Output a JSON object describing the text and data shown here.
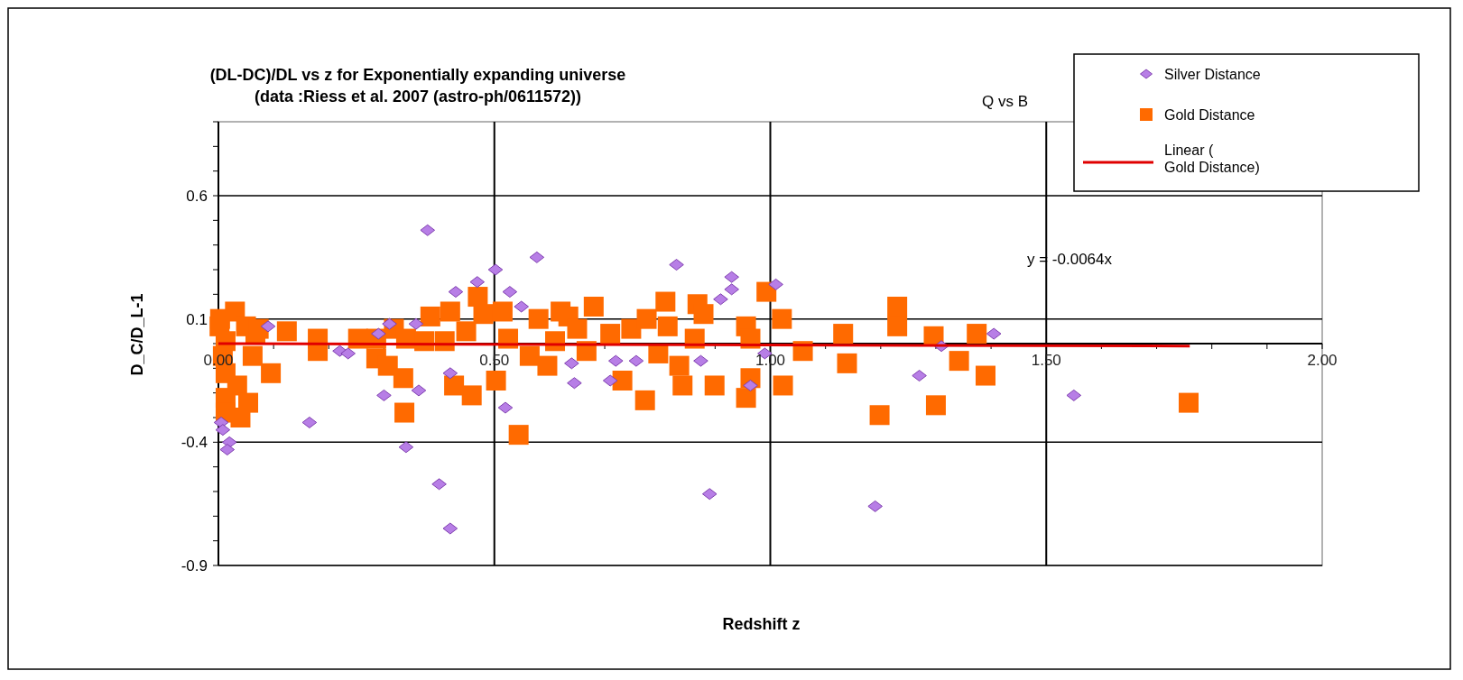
{
  "chart_data": {
    "type": "scatter",
    "title": "(DL-DC)/DL  vs z for Exponentially expanding universe\n(data :Riess et al. 2007 (astro-ph/0611572))",
    "xlabel": "Redshift z",
    "ylabel": "D_C/D_L-1",
    "annotations": [
      "Q vs B",
      "y = -0.0064x"
    ],
    "xlim": [
      0,
      2
    ],
    "ylim": [
      -0.9,
      0.9
    ],
    "xticks": [
      {
        "value": 0,
        "label": "0.00"
      },
      {
        "value": 0.1,
        "label": null
      },
      {
        "value": 0.2,
        "label": null
      },
      {
        "value": 0.3,
        "label": null
      },
      {
        "value": 0.4,
        "label": null
      },
      {
        "value": 0.5,
        "label": "0.50"
      },
      {
        "value": 0.6,
        "label": null
      },
      {
        "value": 0.7,
        "label": null
      },
      {
        "value": 0.8,
        "label": null
      },
      {
        "value": 0.9,
        "label": null
      },
      {
        "value": 1,
        "label": "1.00"
      },
      {
        "value": 1.1,
        "label": null
      },
      {
        "value": 1.2,
        "label": null
      },
      {
        "value": 1.3,
        "label": null
      },
      {
        "value": 1.4,
        "label": null
      },
      {
        "value": 1.5,
        "label": "1.50"
      },
      {
        "value": 1.6,
        "label": null
      },
      {
        "value": 1.7,
        "label": null
      },
      {
        "value": 1.8,
        "label": null
      },
      {
        "value": 1.9,
        "label": null
      },
      {
        "value": 2,
        "label": "2.00"
      }
    ],
    "yticks": [
      -0.9,
      {
        "value": -0.8,
        "label": null
      },
      {
        "value": -0.7,
        "label": null
      },
      {
        "value": -0.6,
        "label": null
      },
      {
        "value": -0.5,
        "label": null
      },
      -0.4,
      {
        "value": -0.3,
        "label": null
      },
      {
        "value": -0.2,
        "label": null
      },
      {
        "value": -0.1,
        "label": null
      },
      {
        "value": 0,
        "label": null
      },
      0.1,
      {
        "value": 0.2,
        "label": null
      },
      {
        "value": 0.3,
        "label": null
      },
      {
        "value": 0.4,
        "label": null
      },
      {
        "value": 0.5,
        "label": null
      },
      0.6,
      {
        "value": 0.7,
        "label": null
      },
      {
        "value": 0.8,
        "label": null
      },
      {
        "value": 0.9,
        "label": null
      }
    ],
    "grid": true,
    "legend": "top right",
    "series": [
      {
        "name": "Silver Distance",
        "marker": "diamond",
        "color": "#b77ee6",
        "x": [
          0.379,
          0.577,
          0.502,
          0.469,
          0.43,
          0.528,
          0.549,
          0.09,
          0.31,
          0.358,
          0.29,
          0.22,
          0.235,
          0.42,
          0.363,
          0.3,
          0.52,
          0.165,
          0.34,
          0.4,
          0.42,
          0.005,
          0.008,
          0.02,
          0.016,
          0.83,
          0.93,
          0.93,
          0.91,
          1.01,
          0.99,
          0.874,
          0.64,
          0.72,
          0.757,
          0.645,
          0.71,
          0.964,
          0.89,
          1.19,
          1.27,
          1.405,
          1.31,
          1.55
        ],
        "values": [
          0.46,
          0.35,
          0.3,
          0.25,
          0.21,
          0.21,
          0.15,
          0.07,
          0.08,
          0.08,
          0.04,
          -0.03,
          -0.04,
          -0.12,
          -0.19,
          -0.21,
          -0.26,
          -0.32,
          -0.42,
          -0.57,
          -0.75,
          -0.32,
          -0.35,
          -0.4,
          -0.43,
          0.32,
          0.27,
          0.22,
          0.18,
          0.24,
          -0.04,
          -0.07,
          -0.08,
          -0.07,
          -0.07,
          -0.16,
          -0.15,
          -0.17,
          -0.61,
          -0.66,
          -0.13,
          0.04,
          -0.01,
          -0.21
        ]
      },
      {
        "name": "Gold Distance",
        "marker": "square",
        "color": "#ff6a00",
        "x": [
          0.03,
          0.002,
          0.05,
          0.013,
          0.067,
          0.008,
          0.062,
          0.095,
          0.013,
          0.034,
          0.013,
          0.054,
          0.04,
          0.013,
          0.073,
          0.003,
          0.124,
          0.18,
          0.18,
          0.253,
          0.286,
          0.286,
          0.307,
          0.335,
          0.337,
          0.318,
          0.34,
          0.384,
          0.373,
          0.42,
          0.41,
          0.427,
          0.459,
          0.47,
          0.48,
          0.449,
          0.515,
          0.503,
          0.544,
          0.525,
          0.58,
          0.596,
          0.564,
          0.62,
          0.61,
          0.634,
          0.68,
          0.65,
          0.667,
          0.71,
          0.732,
          0.773,
          0.748,
          0.776,
          0.81,
          0.814,
          0.797,
          0.835,
          0.841,
          0.868,
          0.879,
          0.863,
          0.899,
          0.956,
          0.964,
          0.956,
          0.964,
          0.993,
          1.021,
          1.023,
          1.059,
          1.132,
          1.139,
          1.23,
          1.23,
          1.198,
          1.296,
          1.3,
          1.374,
          1.342,
          1.39,
          1.758
        ],
        "values": [
          0.13,
          0.07,
          0.07,
          0.01,
          0.04,
          -0.05,
          -0.05,
          -0.12,
          -0.12,
          -0.17,
          -0.22,
          -0.24,
          -0.3,
          -0.28,
          0.06,
          0.1,
          0.05,
          0.02,
          -0.03,
          0.02,
          0.02,
          -0.06,
          -0.09,
          -0.14,
          -0.28,
          0.06,
          0.02,
          0.11,
          0.01,
          0.13,
          0.01,
          -0.17,
          -0.21,
          0.19,
          0.12,
          0.05,
          0.13,
          -0.15,
          -0.37,
          0.02,
          0.1,
          -0.09,
          -0.05,
          0.13,
          0.01,
          0.11,
          0.15,
          0.06,
          -0.03,
          0.04,
          -0.15,
          -0.23,
          0.06,
          0.1,
          0.17,
          0.07,
          -0.04,
          -0.09,
          -0.17,
          0.16,
          0.12,
          0.02,
          -0.17,
          0.07,
          0.02,
          -0.22,
          -0.14,
          0.21,
          0.1,
          -0.17,
          -0.03,
          0.04,
          -0.08,
          0.15,
          0.07,
          -0.29,
          0.03,
          -0.25,
          0.04,
          -0.07,
          -0.13,
          -0.24
        ]
      },
      {
        "name": "Linear (Gold Distance)",
        "type": "line",
        "marker": "none",
        "line_style": "solid",
        "color": "#e00000",
        "x": [
          0,
          1.76
        ],
        "values": [
          0,
          -0.01
        ]
      }
    ]
  }
}
